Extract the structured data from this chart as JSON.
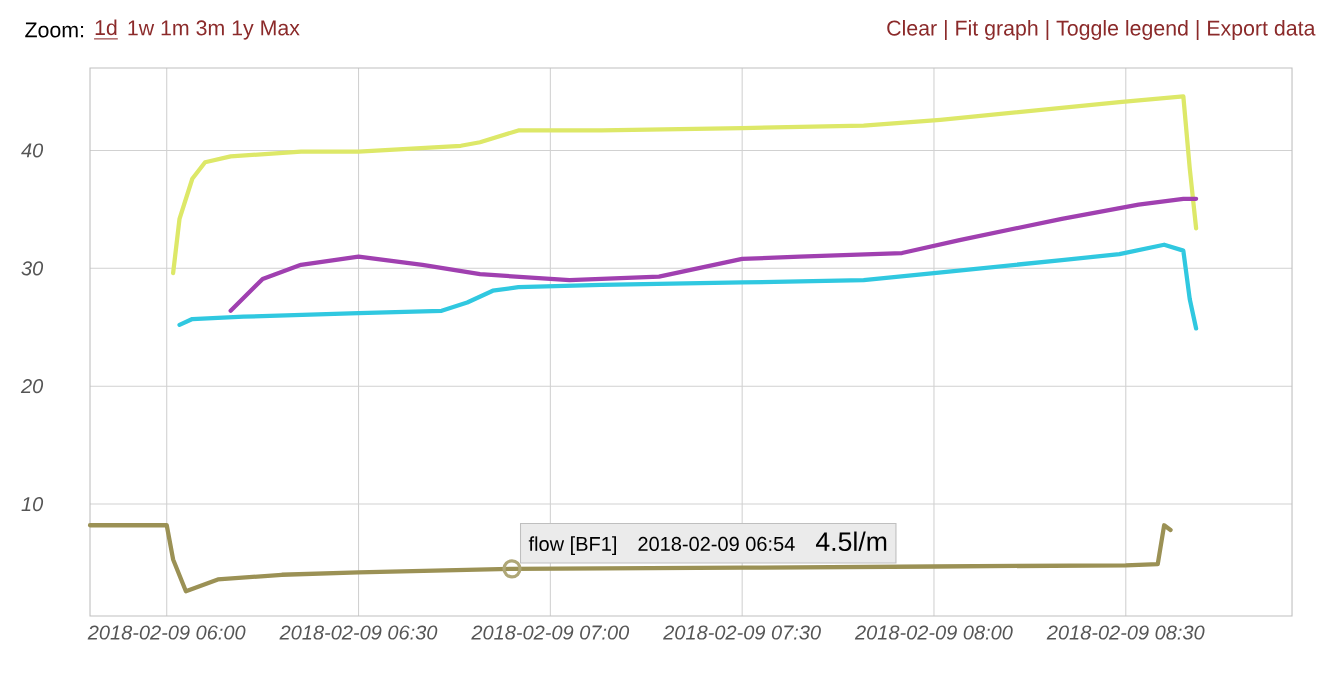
{
  "chart_data": {
    "type": "line",
    "annotations": [
      "Zoom:",
      "1d",
      "1w 1m 3m 1y Max",
      "Clear | Fit graph | Toggle legend | Export data",
      {
        "text": "flow [BF1]",
        "x": "2018-02-09T06:54",
        "y": 4.5
      },
      "2018-02-09 06:54",
      "4.5l/m"
    ],
    "xlim": [
      "2018-02-09T05:48",
      "2018-02-09T08:56"
    ],
    "xticks": [
      {
        "value": "2018-02-09T06:00",
        "label": "2018-02-09 06:00"
      },
      {
        "value": "2018-02-09T06:30",
        "label": "2018-02-09 06:30"
      },
      {
        "value": "2018-02-09T07:00",
        "label": "2018-02-09 07:00"
      },
      {
        "value": "2018-02-09T07:30",
        "label": "2018-02-09 07:30"
      },
      {
        "value": "2018-02-09T08:00",
        "label": "2018-02-09 08:00"
      },
      {
        "value": "2018-02-09T08:30",
        "label": "2018-02-09 08:30"
      }
    ],
    "ylim": [
      0.5,
      47
    ],
    "yticks": [
      10,
      20,
      30,
      40
    ],
    "grid": true,
    "marker": "none",
    "line_style": "solid",
    "series": [
      {
        "color": "#dde868",
        "x": [
          "2018-02-09T06:01",
          "2018-02-09T06:02",
          "2018-02-09T06:04",
          "2018-02-09T06:06",
          "2018-02-09T06:10",
          "2018-02-09T06:21",
          "2018-02-09T06:30",
          "2018-02-09T06:46",
          "2018-02-09T06:49",
          "2018-02-09T06:55",
          "2018-02-09T07:08",
          "2018-02-09T07:30",
          "2018-02-09T07:49",
          "2018-02-09T08:01",
          "2018-02-09T08:29",
          "2018-02-09T08:39",
          "2018-02-09T08:40",
          "2018-02-09T08:41"
        ],
        "values": [
          29.6,
          34.2,
          37.6,
          39.0,
          39.5,
          39.9,
          39.9,
          40.4,
          40.7,
          41.7,
          41.7,
          41.9,
          42.1,
          42.6,
          44.1,
          44.6,
          38.5,
          33.4
        ]
      },
      {
        "color": "#a040b0",
        "x": [
          "2018-02-09T06:10",
          "2018-02-09T06:15",
          "2018-02-09T06:21",
          "2018-02-09T06:30",
          "2018-02-09T06:40",
          "2018-02-09T06:49",
          "2018-02-09T07:03",
          "2018-02-09T07:17",
          "2018-02-09T07:30",
          "2018-02-09T07:39",
          "2018-02-09T07:55",
          "2018-02-09T08:04",
          "2018-02-09T08:20",
          "2018-02-09T08:32",
          "2018-02-09T08:39",
          "2018-02-09T08:41"
        ],
        "values": [
          26.4,
          29.1,
          30.3,
          31.0,
          30.3,
          29.5,
          29.0,
          29.3,
          30.8,
          31.0,
          31.3,
          32.4,
          34.2,
          35.4,
          35.9,
          35.9
        ]
      },
      {
        "color": "#30c8e0",
        "x": [
          "2018-02-09T06:02",
          "2018-02-09T06:04",
          "2018-02-09T06:12",
          "2018-02-09T06:30",
          "2018-02-09T06:43",
          "2018-02-09T06:47",
          "2018-02-09T06:51",
          "2018-02-09T06:55",
          "2018-02-09T07:08",
          "2018-02-09T07:30",
          "2018-02-09T07:49",
          "2018-02-09T08:00",
          "2018-02-09T08:20",
          "2018-02-09T08:29",
          "2018-02-09T08:36",
          "2018-02-09T08:39",
          "2018-02-09T08:40",
          "2018-02-09T08:41"
        ],
        "values": [
          25.2,
          25.7,
          25.9,
          26.2,
          26.4,
          27.1,
          28.1,
          28.4,
          28.6,
          28.8,
          29.0,
          29.6,
          30.7,
          31.2,
          32.0,
          31.5,
          27.4,
          24.9
        ]
      },
      {
        "color": "#9b9155",
        "x": [
          "2018-02-09T05:48",
          "2018-02-09T06:00",
          "2018-02-09T06:01",
          "2018-02-09T06:03",
          "2018-02-09T06:08",
          "2018-02-09T06:18",
          "2018-02-09T06:30",
          "2018-02-09T06:54",
          "2018-02-09T07:30",
          "2018-02-09T08:00",
          "2018-02-09T08:30",
          "2018-02-09T08:35",
          "2018-02-09T08:36",
          "2018-02-09T08:37"
        ],
        "values": [
          8.2,
          8.2,
          5.3,
          2.6,
          3.6,
          4.0,
          4.2,
          4.5,
          4.6,
          4.7,
          4.8,
          4.9,
          8.2,
          7.8
        ]
      }
    ]
  }
}
